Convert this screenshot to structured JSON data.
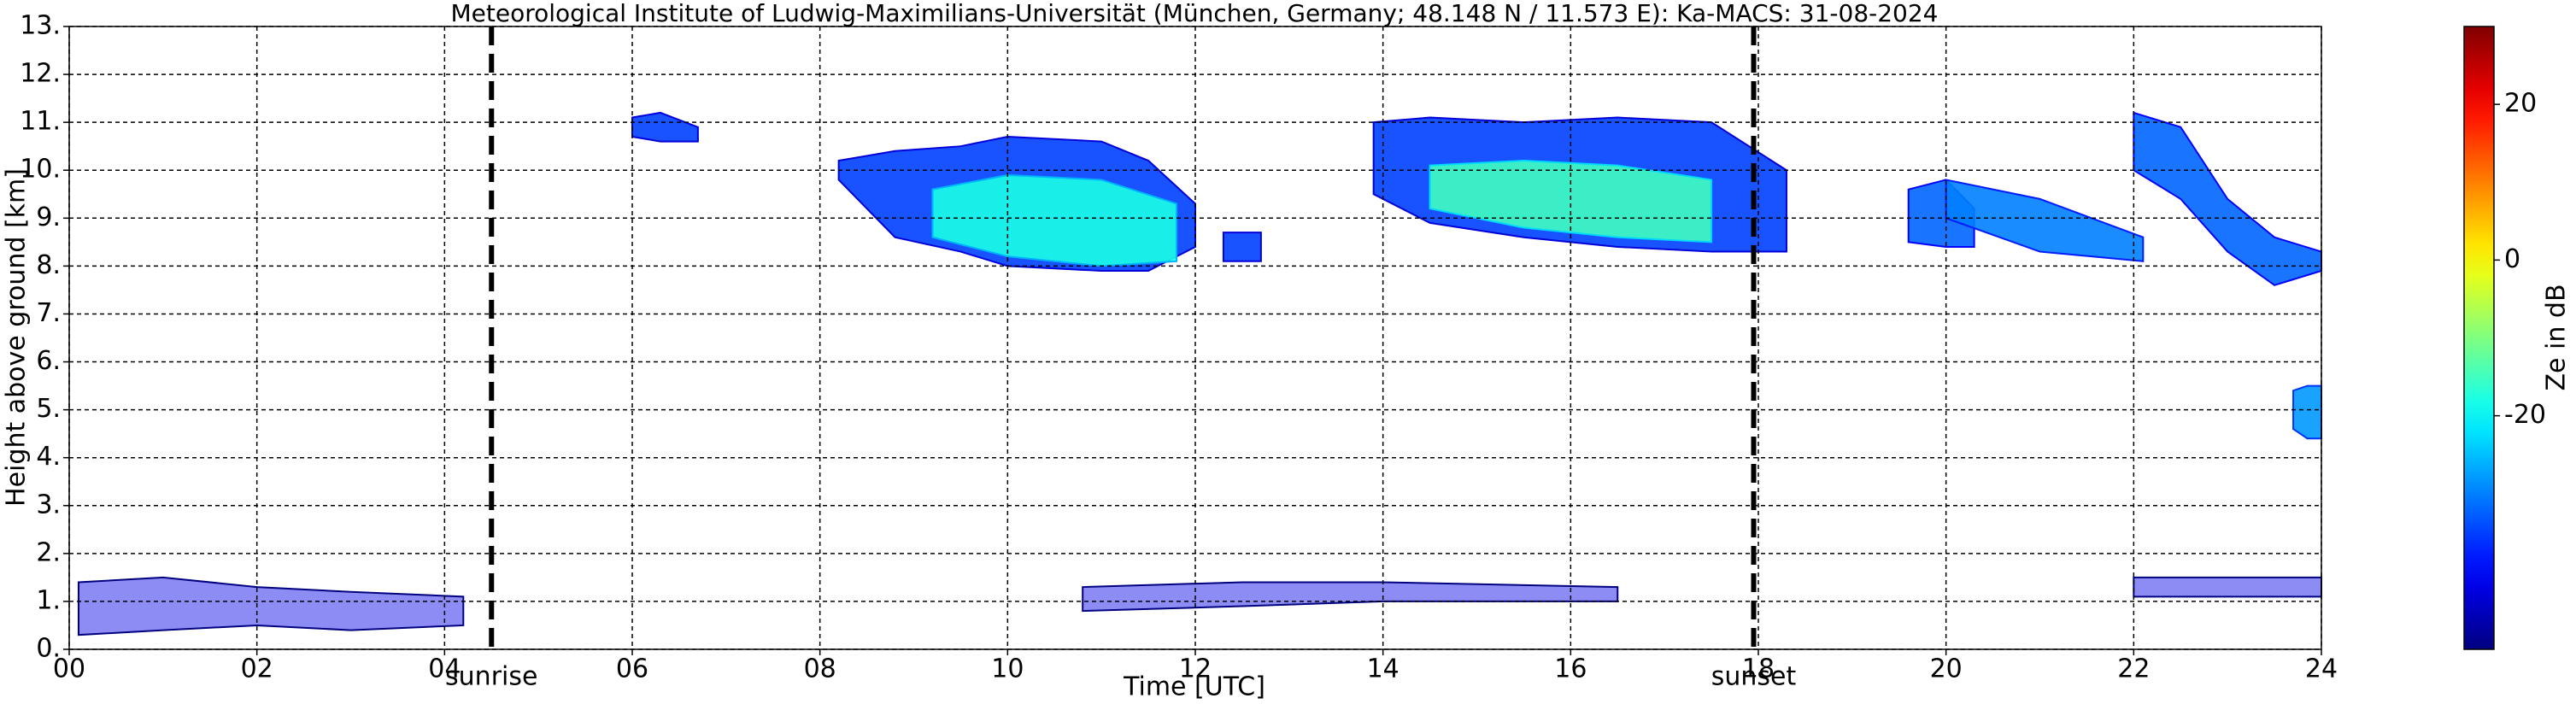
{
  "chart_data": {
    "type": "time-height",
    "title": "Meteorological Institute of Ludwig-Maximilians-Universität (München, Germany; 48.148 N / 11.573 E):    Ka-MACS: 31-08-2024",
    "xlabel": "Time [UTC]",
    "ylabel": "Height above ground [km]",
    "xlim": [
      0,
      24
    ],
    "xticks": [
      {
        "value": 0,
        "label": "00"
      },
      {
        "value": 2,
        "label": "02"
      },
      {
        "value": 4,
        "label": "04"
      },
      {
        "value": 6,
        "label": "06"
      },
      {
        "value": 8,
        "label": "08"
      },
      {
        "value": 10,
        "label": "10"
      },
      {
        "value": 12,
        "label": "12"
      },
      {
        "value": 14,
        "label": "14"
      },
      {
        "value": 16,
        "label": "16"
      },
      {
        "value": 18,
        "label": "18"
      },
      {
        "value": 20,
        "label": "20"
      },
      {
        "value": 22,
        "label": "22"
      },
      {
        "value": 24,
        "label": "24"
      }
    ],
    "ylim": [
      0,
      13
    ],
    "yticks": [
      {
        "value": 0,
        "label": "0."
      },
      {
        "value": 1,
        "label": "1."
      },
      {
        "value": 2,
        "label": "2."
      },
      {
        "value": 3,
        "label": "3."
      },
      {
        "value": 4,
        "label": "4."
      },
      {
        "value": 5,
        "label": "5."
      },
      {
        "value": 6,
        "label": "6."
      },
      {
        "value": 7,
        "label": "7."
      },
      {
        "value": 8,
        "label": "8."
      },
      {
        "value": 9,
        "label": "9."
      },
      {
        "value": 10,
        "label": "10."
      },
      {
        "value": 11,
        "label": "11."
      },
      {
        "value": 12,
        "label": "12."
      },
      {
        "value": 13,
        "label": "13."
      }
    ],
    "grid": true,
    "markers": [
      {
        "x": 4.5,
        "label": "sunrise"
      },
      {
        "x": 17.95,
        "label": "sunset"
      }
    ],
    "colorbar": {
      "label": "Ze in dB",
      "clim": [
        -50,
        30
      ],
      "ticks": [
        -20,
        0,
        20
      ],
      "colormap": "jet"
    },
    "echoes": [
      {
        "x": [
          0.1,
          1.0,
          2.0,
          3.0,
          4.2
        ],
        "top": [
          1.4,
          1.5,
          1.3,
          1.2,
          1.1
        ],
        "base": [
          0.3,
          0.4,
          0.5,
          0.4,
          0.5
        ],
        "ze": -42
      },
      {
        "x": [
          10.8,
          12.5,
          14.0,
          16.5
        ],
        "top": [
          1.3,
          1.4,
          1.4,
          1.3
        ],
        "base": [
          0.8,
          0.9,
          1.0,
          1.0
        ],
        "ze": -42
      },
      {
        "x": [
          22.0,
          23.0,
          24.0
        ],
        "top": [
          1.5,
          1.5,
          1.5
        ],
        "base": [
          1.1,
          1.1,
          1.1
        ],
        "ze": -42
      },
      {
        "x": [
          6.0,
          6.3,
          6.7
        ],
        "top": [
          11.1,
          11.2,
          10.9
        ],
        "base": [
          10.7,
          10.6,
          10.6
        ],
        "ze": -35
      },
      {
        "x": [
          8.2,
          8.8,
          9.5,
          10.0,
          11.0,
          11.5,
          12.0
        ],
        "top": [
          10.2,
          10.4,
          10.5,
          10.7,
          10.6,
          10.2,
          9.3
        ],
        "base": [
          9.8,
          8.6,
          8.3,
          8.0,
          7.9,
          7.9,
          8.4
        ],
        "ze": -35
      },
      {
        "x": [
          9.2,
          10.0,
          11.0,
          11.8
        ],
        "top": [
          9.6,
          9.9,
          9.8,
          9.3
        ],
        "base": [
          8.6,
          8.2,
          8.0,
          8.1
        ],
        "ze": -18
      },
      {
        "x": [
          12.3,
          12.7
        ],
        "top": [
          8.7,
          8.7
        ],
        "base": [
          8.1,
          8.1
        ],
        "ze": -35
      },
      {
        "x": [
          13.9,
          14.5,
          15.5,
          16.5,
          17.5,
          18.3
        ],
        "top": [
          11.0,
          11.1,
          11.0,
          11.1,
          11.0,
          10.0
        ],
        "base": [
          9.5,
          8.9,
          8.6,
          8.4,
          8.3,
          8.3
        ],
        "ze": -35
      },
      {
        "x": [
          14.5,
          15.5,
          16.5,
          17.5
        ],
        "top": [
          10.1,
          10.2,
          10.1,
          9.8
        ],
        "base": [
          9.2,
          8.8,
          8.6,
          8.5
        ],
        "ze": -15
      },
      {
        "x": [
          19.6,
          20.0,
          20.3
        ],
        "top": [
          9.6,
          9.8,
          9.2
        ],
        "base": [
          8.5,
          8.4,
          8.4
        ],
        "ze": -32
      },
      {
        "x": [
          20.0,
          21.0,
          22.1
        ],
        "top": [
          9.8,
          9.4,
          8.6
        ],
        "base": [
          9.0,
          8.3,
          8.1
        ],
        "ze": -30
      },
      {
        "x": [
          22.0,
          22.5,
          23.0,
          23.5,
          24.0
        ],
        "top": [
          11.2,
          10.9,
          9.4,
          8.6,
          8.3
        ],
        "base": [
          10.0,
          9.4,
          8.3,
          7.6,
          7.9
        ],
        "ze": -32
      },
      {
        "x": [
          23.7,
          23.85,
          24.0
        ],
        "top": [
          5.4,
          5.5,
          5.5
        ],
        "base": [
          4.6,
          4.4,
          4.4
        ],
        "ze": -28
      }
    ]
  }
}
